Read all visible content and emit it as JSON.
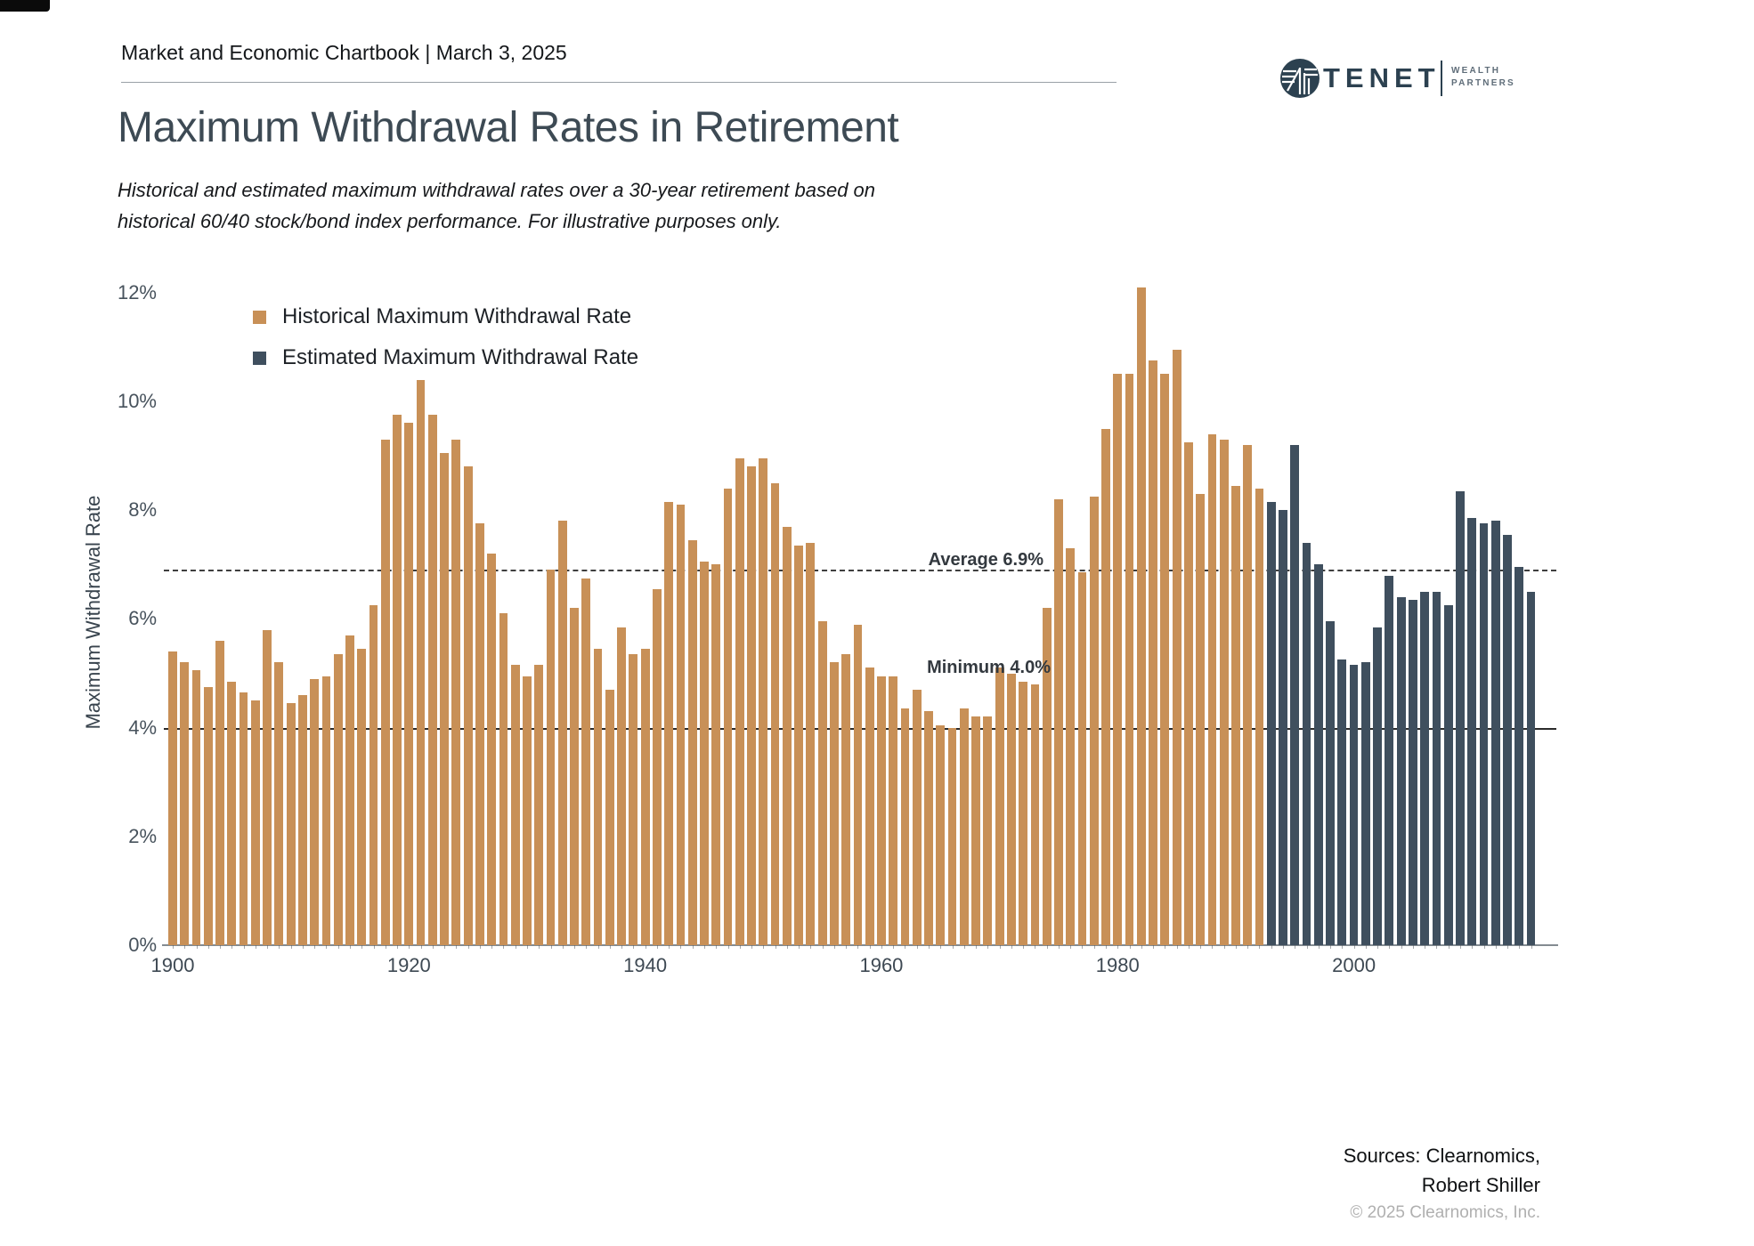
{
  "page": {
    "header_label": "Market and Economic Chartbook | March 3, 2025",
    "title": "Maximum Withdrawal Rates in Retirement",
    "subtitle_line1": "Historical and estimated maximum withdrawal rates over a 30-year retirement based on",
    "subtitle_line2": "historical 60/40 stock/bond index performance. For illustrative purposes only."
  },
  "logo": {
    "brand": "TENET",
    "sub_line1": "WEALTH",
    "sub_line2": "PARTNERS",
    "navy": "#2c4150"
  },
  "chart_data": {
    "type": "bar",
    "title": "Maximum Withdrawal Rates in Retirement",
    "xlabel": "",
    "ylabel": "Maximum Withdrawal Rate",
    "ylim": [
      0,
      12.8
    ],
    "yticks_percent": [
      0,
      2,
      4,
      6,
      8,
      10,
      12
    ],
    "xticks": [
      1900,
      1920,
      1940,
      1960,
      1980,
      2000
    ],
    "grid": false,
    "legend_position": "top-left-inside",
    "average_line": {
      "value": 6.9,
      "label": "Average 6.9%",
      "style": "dashed"
    },
    "minimum_line": {
      "value": 4.0,
      "label": "Minimum 4.0%",
      "style": "solid"
    },
    "x_start_year": 1900,
    "x_end_year": 2015,
    "series": [
      {
        "name": "Historical Maximum Withdrawal Rate",
        "color": "#C89057",
        "start_year": 1900,
        "end_year": 1992,
        "values": [
          5.4,
          5.2,
          5.05,
          4.75,
          5.6,
          4.85,
          4.65,
          4.5,
          5.8,
          5.2,
          4.45,
          4.6,
          4.9,
          4.95,
          5.35,
          5.7,
          5.45,
          6.25,
          9.3,
          9.75,
          9.6,
          10.4,
          9.75,
          9.05,
          9.3,
          8.8,
          7.75,
          7.2,
          6.1,
          5.15,
          4.95,
          5.15,
          6.9,
          7.8,
          6.2,
          6.75,
          5.45,
          4.7,
          5.85,
          5.35,
          5.45,
          6.55,
          8.15,
          8.1,
          7.45,
          7.05,
          7.0,
          8.4,
          8.95,
          8.8,
          8.95,
          8.5,
          7.7,
          7.35,
          7.4,
          5.95,
          5.2,
          5.35,
          5.9,
          5.1,
          4.95,
          4.95,
          4.35,
          4.7,
          4.3,
          4.05,
          4.0,
          4.35,
          4.2,
          4.2,
          5.1,
          5.0,
          4.85,
          4.8,
          6.2,
          8.2,
          7.3,
          6.85,
          8.25,
          9.5,
          10.5,
          10.5,
          12.1,
          10.75,
          10.5,
          10.95,
          9.25,
          8.3,
          9.4,
          9.3,
          8.45,
          9.2,
          8.4
        ]
      },
      {
        "name": "Estimated Maximum Withdrawal Rate",
        "color": "#3F4F5E",
        "start_year": 1993,
        "end_year": 2015,
        "values": [
          8.15,
          8.0,
          9.2,
          7.4,
          7.0,
          5.95,
          5.25,
          5.15,
          5.2,
          5.85,
          6.8,
          6.4,
          6.35,
          6.5,
          6.5,
          6.25,
          8.35,
          7.85,
          7.75,
          7.8,
          7.55,
          6.95,
          6.5
        ]
      }
    ]
  },
  "footer": {
    "sources_line1": "Sources: Clearnomics,",
    "sources_line2": "Robert Shiller",
    "copyright": "© 2025 Clearnomics, Inc."
  }
}
